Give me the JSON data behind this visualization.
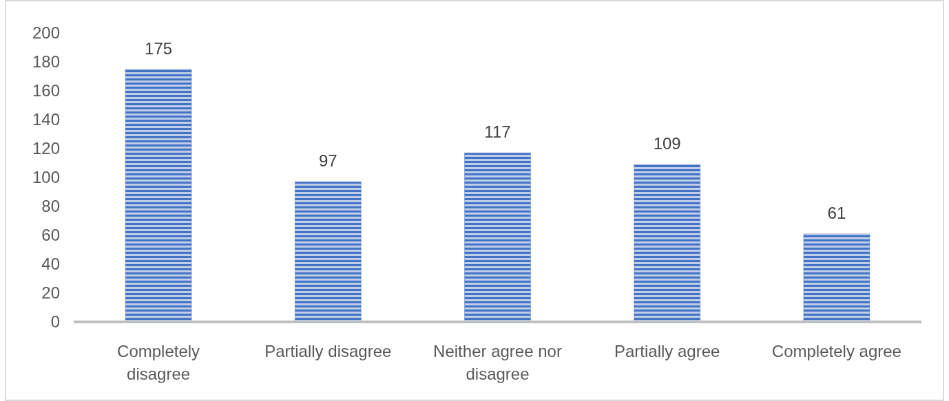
{
  "chart_data": {
    "type": "bar",
    "categories": [
      "Completely disagree",
      "Partially disagree",
      "Neither agree nor disagree",
      "Partially agree",
      "Completely agree"
    ],
    "values": [
      175,
      97,
      117,
      109,
      61
    ],
    "color": "#4472c4",
    "ylim": [
      0,
      200
    ],
    "yticks": [
      0,
      20,
      40,
      60,
      80,
      100,
      120,
      140,
      160,
      180,
      200
    ],
    "grid": false,
    "data_labels": true
  }
}
